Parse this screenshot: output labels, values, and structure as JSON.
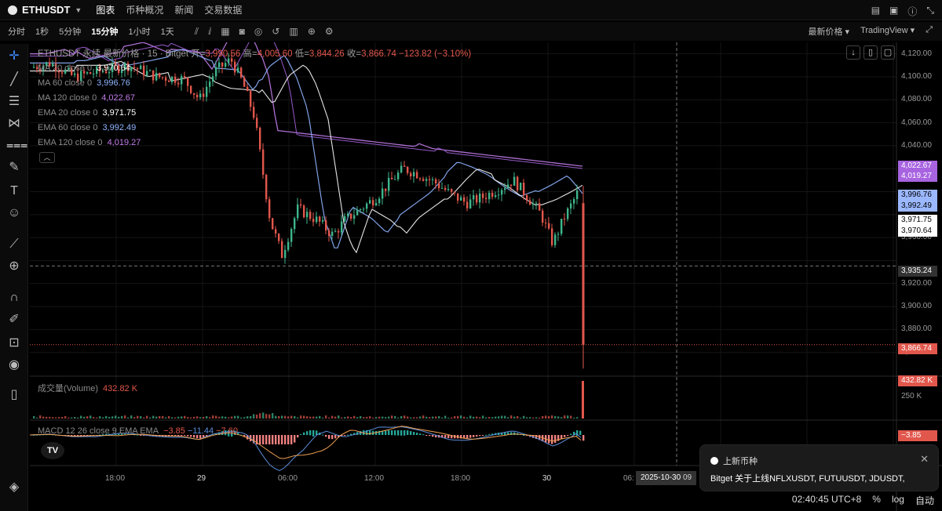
{
  "header": {
    "symbol": "ETHUSDT",
    "nav": [
      "图表",
      "币种概况",
      "新闻",
      "交易数据"
    ]
  },
  "toolbar": {
    "intervals": [
      "分时",
      "1秒",
      "5分钟",
      "15分钟",
      "1小时",
      "1天"
    ],
    "active_interval": "15分钟",
    "price_mode": "最新价格",
    "chart_engine": "TradingView"
  },
  "legend": {
    "title": "ETHUSDT 永续 最新价格 · 15 · Bitget",
    "open_label": "开=",
    "open": "3,990.56",
    "high_label": "高=",
    "high": "4,005.60",
    "low_label": "低=",
    "low": "3,844.26",
    "close_label": "收=",
    "close": "3,866.74",
    "change": "−123.82 (−3.10%)",
    "indicators": [
      {
        "label": "MA 20 close 0",
        "value": "3,970.64",
        "color": "#ffffff"
      },
      {
        "label": "MA 60 close 0",
        "value": "3,996.76",
        "color": "#8fb4ff"
      },
      {
        "label": "MA 120 close 0",
        "value": "4,022.67",
        "color": "#c07be8"
      },
      {
        "label": "EMA 20 close 0",
        "value": "3,971.75",
        "color": "#ffffff"
      },
      {
        "label": "EMA 60 close 0",
        "value": "3,992.49",
        "color": "#8fb4ff"
      },
      {
        "label": "EMA 120 close 0",
        "value": "4,019.27",
        "color": "#c07be8"
      }
    ],
    "volume_label": "成交量(Volume)",
    "volume_value": "432.82 K",
    "macd_label": "MACD 12 26 close 9 EMA EMA",
    "macd_values": [
      "−3.85",
      "−11.44",
      "−7.60"
    ]
  },
  "price_labels": [
    {
      "text": "4,022.67",
      "bg": "#a763e0",
      "fg": "#ffffff"
    },
    {
      "text": "4,019.27",
      "bg": "#a763e0",
      "fg": "#ffffff"
    },
    {
      "text": "3,996.76",
      "bg": "#9bb8ff",
      "fg": "#000000"
    },
    {
      "text": "3,992.49",
      "bg": "#9bb8ff",
      "fg": "#000000"
    },
    {
      "text": "3,971.75",
      "bg": "#ffffff",
      "fg": "#000000"
    },
    {
      "text": "3,970.64",
      "bg": "#ffffff",
      "fg": "#000000"
    },
    {
      "text": "3,935.24",
      "bg": "#333333",
      "fg": "#ffffff"
    },
    {
      "text": "3,866.74",
      "bg": "#e2574c",
      "fg": "#ffffff"
    },
    {
      "text": "432.82 K",
      "bg": "#e2574c",
      "fg": "#ffffff"
    },
    {
      "text": "−3.85",
      "bg": "#e2574c",
      "fg": "#ffffff"
    }
  ],
  "chart_data": {
    "type": "candlestick",
    "price_axis_ticks": [
      "4,120.00",
      "4,100.00",
      "4,080.00",
      "4,060.00",
      "4,040.00",
      "3,960.00",
      "3,920.00",
      "3,900.00",
      "3,880.00",
      "3,860.00"
    ],
    "volume_axis_ticks": [
      "250 K"
    ],
    "time_ticks": [
      "18:00",
      "29",
      "06:00",
      "12:00",
      "18:00",
      "30",
      "06:"
    ],
    "crosshair_time": "2025-10-30",
    "crosshair_time_tail": "09",
    "ylim": [
      3840,
      4130
    ]
  },
  "notification": {
    "title": "上新币种",
    "body": "Bitget 关于上线NFLXUSDT, FUTUUSDT, JDUSDT,"
  },
  "footer": {
    "clock": "02:40:45 UTC+8",
    "pct": "%",
    "log": "log",
    "auto": "自动"
  },
  "colors": {
    "up": "#3fb68b",
    "down": "#e2574c"
  }
}
